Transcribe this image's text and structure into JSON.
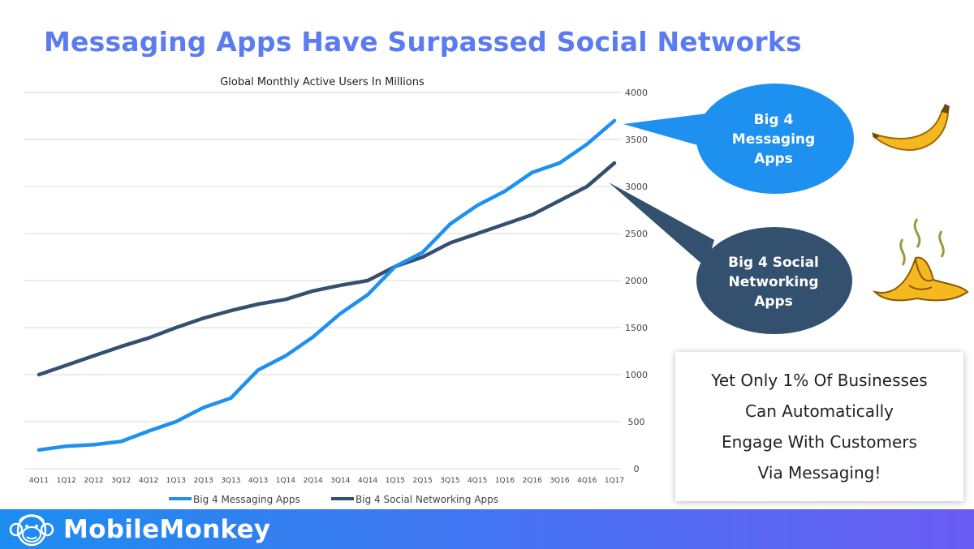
{
  "slide": {
    "title": "Messaging Apps Have Surpassed Social Networks",
    "title_color": "#5b7cf0"
  },
  "chart_data": {
    "type": "line",
    "title": "Global Monthly Active Users In Millions",
    "xlabel": "",
    "ylabel": "",
    "categories": [
      "4Q11",
      "1Q12",
      "2Q12",
      "3Q12",
      "4Q12",
      "1Q13",
      "2Q13",
      "3Q13",
      "4Q13",
      "1Q14",
      "2Q14",
      "3Q14",
      "4Q14",
      "1Q15",
      "2Q15",
      "3Q15",
      "4Q15",
      "1Q16",
      "2Q16",
      "3Q16",
      "4Q16",
      "1Q17"
    ],
    "ylim": [
      0,
      4000
    ],
    "yticks": [
      0,
      500,
      1000,
      1500,
      2000,
      2500,
      3000,
      3500,
      4000
    ],
    "y_axis_side": "right",
    "grid": true,
    "legend_position": "bottom",
    "series": [
      {
        "name": "Big 4 Messaging Apps",
        "color": "#1e90f0",
        "values": [
          200,
          240,
          255,
          290,
          400,
          500,
          650,
          750,
          1050,
          1200,
          1400,
          1650,
          1850,
          2150,
          2300,
          2600,
          2800,
          2950,
          3150,
          3250,
          3450,
          3700
        ]
      },
      {
        "name": "Big 4 Social Networking Apps",
        "color": "#34506f",
        "values": [
          1000,
          1100,
          1200,
          1300,
          1390,
          1500,
          1600,
          1680,
          1750,
          1800,
          1890,
          1950,
          2000,
          2150,
          2250,
          2400,
          2500,
          2600,
          2700,
          2850,
          3000,
          3250
        ]
      }
    ]
  },
  "callouts": {
    "messaging": {
      "lines": [
        "Big 4",
        "Messaging",
        "Apps"
      ],
      "color": "#1e90f0",
      "icon": "banana-icon"
    },
    "social": {
      "lines": [
        "Big 4 Social",
        "Networking",
        "Apps"
      ],
      "color": "#34506f",
      "icon": "rotten-banana-peel-icon"
    }
  },
  "cta": {
    "lines": [
      "Yet Only 1% Of Businesses",
      "Can Automatically",
      "Engage With Customers",
      "Via Messaging!"
    ]
  },
  "footer": {
    "brand": "MobileMonkey",
    "logo_icon": "monkey-logo-icon",
    "gradient_start": "#1c8df0",
    "gradient_end": "#6a5cf2"
  }
}
